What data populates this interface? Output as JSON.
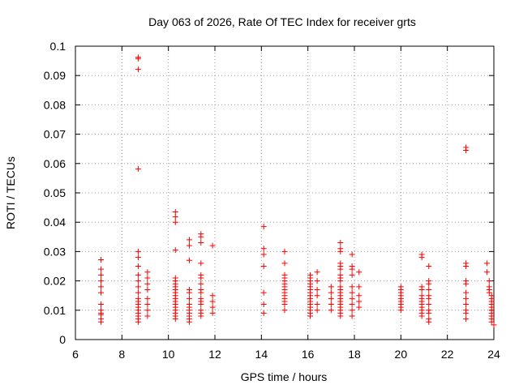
{
  "chart_data": {
    "type": "scatter",
    "title": "Day 063 of 2026, Rate Of TEC Index for receiver grts",
    "xlabel": "GPS time / hours",
    "ylabel": "ROTI / TECUs",
    "xlim": [
      6,
      24
    ],
    "ylim": [
      0,
      0.1
    ],
    "x_ticks": [
      "6",
      "8",
      "10",
      "12",
      "14",
      "16",
      "18",
      "20",
      "22",
      "24"
    ],
    "y_ticks": [
      "0",
      "0.01",
      "0.02",
      "0.03",
      "0.04",
      "0.05",
      "0.06",
      "0.07",
      "0.08",
      "0.09",
      "0.1"
    ],
    "grid": true,
    "marker": "+",
    "colors": {
      "points": "#ff0000",
      "grid": "#a0a0a0",
      "axes": "#000000"
    },
    "series": [
      {
        "points": [
          [
            7.1,
            0.0272
          ],
          [
            7.1,
            0.024
          ],
          [
            7.1,
            0.022
          ],
          [
            7.1,
            0.02
          ],
          [
            7.1,
            0.018
          ],
          [
            7.1,
            0.016
          ],
          [
            7.1,
            0.012
          ],
          [
            7.1,
            0.01
          ],
          [
            7.1,
            0.009
          ],
          [
            7.1,
            0.0085
          ],
          [
            7.1,
            0.007
          ],
          [
            7.1,
            0.006
          ],
          [
            8.7,
            0.0962
          ],
          [
            8.7,
            0.0958
          ],
          [
            8.7,
            0.0921
          ],
          [
            8.7,
            0.0582
          ],
          [
            8.7,
            0.03
          ],
          [
            8.7,
            0.028
          ],
          [
            8.7,
            0.025
          ],
          [
            8.7,
            0.022
          ],
          [
            8.7,
            0.02
          ],
          [
            8.7,
            0.018
          ],
          [
            8.7,
            0.016
          ],
          [
            8.7,
            0.014
          ],
          [
            8.7,
            0.013
          ],
          [
            8.7,
            0.012
          ],
          [
            8.7,
            0.011
          ],
          [
            8.7,
            0.01
          ],
          [
            8.7,
            0.009
          ],
          [
            8.7,
            0.008
          ],
          [
            8.7,
            0.007
          ],
          [
            8.7,
            0.006
          ],
          [
            9.1,
            0.023
          ],
          [
            9.1,
            0.021
          ],
          [
            9.1,
            0.019
          ],
          [
            9.1,
            0.017
          ],
          [
            9.1,
            0.014
          ],
          [
            9.1,
            0.012
          ],
          [
            9.1,
            0.01
          ],
          [
            9.1,
            0.008
          ],
          [
            10.3,
            0.0435
          ],
          [
            10.3,
            0.0418
          ],
          [
            10.3,
            0.04
          ],
          [
            10.3,
            0.0305
          ],
          [
            10.3,
            0.021
          ],
          [
            10.3,
            0.02
          ],
          [
            10.3,
            0.019
          ],
          [
            10.3,
            0.018
          ],
          [
            10.3,
            0.017
          ],
          [
            10.3,
            0.016
          ],
          [
            10.3,
            0.015
          ],
          [
            10.3,
            0.014
          ],
          [
            10.3,
            0.013
          ],
          [
            10.3,
            0.012
          ],
          [
            10.3,
            0.011
          ],
          [
            10.3,
            0.01
          ],
          [
            10.3,
            0.009
          ],
          [
            10.3,
            0.008
          ],
          [
            10.3,
            0.007
          ],
          [
            10.9,
            0.034
          ],
          [
            10.9,
            0.032
          ],
          [
            10.9,
            0.027
          ],
          [
            10.9,
            0.017
          ],
          [
            10.9,
            0.016
          ],
          [
            10.9,
            0.014
          ],
          [
            10.9,
            0.012
          ],
          [
            10.9,
            0.011
          ],
          [
            10.9,
            0.01
          ],
          [
            10.9,
            0.009
          ],
          [
            10.9,
            0.008
          ],
          [
            10.9,
            0.007
          ],
          [
            10.9,
            0.006
          ],
          [
            11.4,
            0.036
          ],
          [
            11.4,
            0.035
          ],
          [
            11.4,
            0.033
          ],
          [
            11.4,
            0.026
          ],
          [
            11.4,
            0.022
          ],
          [
            11.4,
            0.021
          ],
          [
            11.4,
            0.019
          ],
          [
            11.4,
            0.017
          ],
          [
            11.4,
            0.016
          ],
          [
            11.4,
            0.014
          ],
          [
            11.4,
            0.013
          ],
          [
            11.4,
            0.012
          ],
          [
            11.4,
            0.01
          ],
          [
            11.4,
            0.009
          ],
          [
            11.4,
            0.008
          ],
          [
            11.9,
            0.032
          ],
          [
            11.9,
            0.015
          ],
          [
            11.9,
            0.013
          ],
          [
            11.9,
            0.011
          ],
          [
            11.9,
            0.009
          ],
          [
            14.1,
            0.0385
          ],
          [
            14.1,
            0.031
          ],
          [
            14.1,
            0.029
          ],
          [
            14.1,
            0.025
          ],
          [
            14.1,
            0.016
          ],
          [
            14.1,
            0.012
          ],
          [
            14.1,
            0.009
          ],
          [
            15.0,
            0.03
          ],
          [
            15.0,
            0.026
          ],
          [
            15.0,
            0.022
          ],
          [
            15.0,
            0.021
          ],
          [
            15.0,
            0.02
          ],
          [
            15.0,
            0.019
          ],
          [
            15.0,
            0.018
          ],
          [
            15.0,
            0.017
          ],
          [
            15.0,
            0.016
          ],
          [
            15.0,
            0.015
          ],
          [
            15.0,
            0.014
          ],
          [
            15.0,
            0.013
          ],
          [
            15.0,
            0.012
          ],
          [
            15.0,
            0.01
          ],
          [
            16.1,
            0.022
          ],
          [
            16.1,
            0.021
          ],
          [
            16.1,
            0.02
          ],
          [
            16.1,
            0.019
          ],
          [
            16.1,
            0.018
          ],
          [
            16.1,
            0.017
          ],
          [
            16.1,
            0.016
          ],
          [
            16.1,
            0.015
          ],
          [
            16.1,
            0.014
          ],
          [
            16.1,
            0.013
          ],
          [
            16.1,
            0.012
          ],
          [
            16.1,
            0.011
          ],
          [
            16.1,
            0.01
          ],
          [
            16.1,
            0.009
          ],
          [
            16.1,
            0.008
          ],
          [
            16.4,
            0.023
          ],
          [
            16.4,
            0.02
          ],
          [
            16.4,
            0.017
          ],
          [
            16.4,
            0.015
          ],
          [
            16.4,
            0.012
          ],
          [
            16.4,
            0.01
          ],
          [
            17.0,
            0.018
          ],
          [
            17.0,
            0.016
          ],
          [
            17.0,
            0.014
          ],
          [
            17.0,
            0.012
          ],
          [
            17.0,
            0.01
          ],
          [
            17.4,
            0.033
          ],
          [
            17.4,
            0.031
          ],
          [
            17.4,
            0.03
          ],
          [
            17.4,
            0.026
          ],
          [
            17.4,
            0.025
          ],
          [
            17.4,
            0.024
          ],
          [
            17.4,
            0.022
          ],
          [
            17.4,
            0.021
          ],
          [
            17.4,
            0.02
          ],
          [
            17.4,
            0.018
          ],
          [
            17.4,
            0.017
          ],
          [
            17.4,
            0.016
          ],
          [
            17.4,
            0.015
          ],
          [
            17.4,
            0.014
          ],
          [
            17.4,
            0.013
          ],
          [
            17.4,
            0.012
          ],
          [
            17.4,
            0.011
          ],
          [
            17.4,
            0.01
          ],
          [
            17.4,
            0.009
          ],
          [
            17.4,
            0.008
          ],
          [
            17.9,
            0.029
          ],
          [
            17.9,
            0.025
          ],
          [
            17.9,
            0.024
          ],
          [
            17.9,
            0.022
          ],
          [
            17.9,
            0.018
          ],
          [
            17.9,
            0.016
          ],
          [
            17.9,
            0.014
          ],
          [
            17.9,
            0.012
          ],
          [
            17.9,
            0.01
          ],
          [
            17.9,
            0.008
          ],
          [
            18.2,
            0.023
          ],
          [
            18.2,
            0.018
          ],
          [
            18.2,
            0.015
          ],
          [
            18.2,
            0.013
          ],
          [
            18.2,
            0.011
          ],
          [
            20.0,
            0.018
          ],
          [
            20.0,
            0.017
          ],
          [
            20.0,
            0.016
          ],
          [
            20.0,
            0.015
          ],
          [
            20.0,
            0.014
          ],
          [
            20.0,
            0.013
          ],
          [
            20.0,
            0.012
          ],
          [
            20.0,
            0.011
          ],
          [
            20.0,
            0.01
          ],
          [
            20.9,
            0.029
          ],
          [
            20.9,
            0.028
          ],
          [
            20.9,
            0.018
          ],
          [
            20.9,
            0.017
          ],
          [
            20.9,
            0.015
          ],
          [
            20.9,
            0.014
          ],
          [
            20.9,
            0.013
          ],
          [
            20.9,
            0.012
          ],
          [
            20.9,
            0.011
          ],
          [
            20.9,
            0.01
          ],
          [
            20.9,
            0.009
          ],
          [
            20.9,
            0.008
          ],
          [
            21.2,
            0.025
          ],
          [
            21.2,
            0.02
          ],
          [
            21.2,
            0.019
          ],
          [
            21.2,
            0.017
          ],
          [
            21.2,
            0.015
          ],
          [
            21.2,
            0.014
          ],
          [
            21.2,
            0.012
          ],
          [
            21.2,
            0.01
          ],
          [
            21.2,
            0.009
          ],
          [
            21.2,
            0.007
          ],
          [
            21.2,
            0.006
          ],
          [
            22.8,
            0.0655
          ],
          [
            22.8,
            0.0645
          ],
          [
            22.8,
            0.026
          ],
          [
            22.8,
            0.025
          ],
          [
            22.8,
            0.02
          ],
          [
            22.8,
            0.019
          ],
          [
            22.8,
            0.016
          ],
          [
            22.8,
            0.014
          ],
          [
            22.8,
            0.012
          ],
          [
            22.8,
            0.01
          ],
          [
            22.8,
            0.009
          ],
          [
            22.8,
            0.007
          ],
          [
            23.7,
            0.026
          ],
          [
            23.7,
            0.023
          ],
          [
            23.8,
            0.02
          ],
          [
            23.8,
            0.018
          ],
          [
            23.8,
            0.017
          ],
          [
            23.8,
            0.016
          ],
          [
            23.9,
            0.015
          ],
          [
            23.9,
            0.014
          ],
          [
            23.9,
            0.013
          ],
          [
            23.9,
            0.012
          ],
          [
            23.9,
            0.011
          ],
          [
            23.9,
            0.01
          ],
          [
            23.9,
            0.009
          ],
          [
            23.9,
            0.008
          ],
          [
            23.9,
            0.007
          ],
          [
            23.9,
            0.006
          ],
          [
            24.0,
            0.005
          ]
        ]
      }
    ]
  }
}
